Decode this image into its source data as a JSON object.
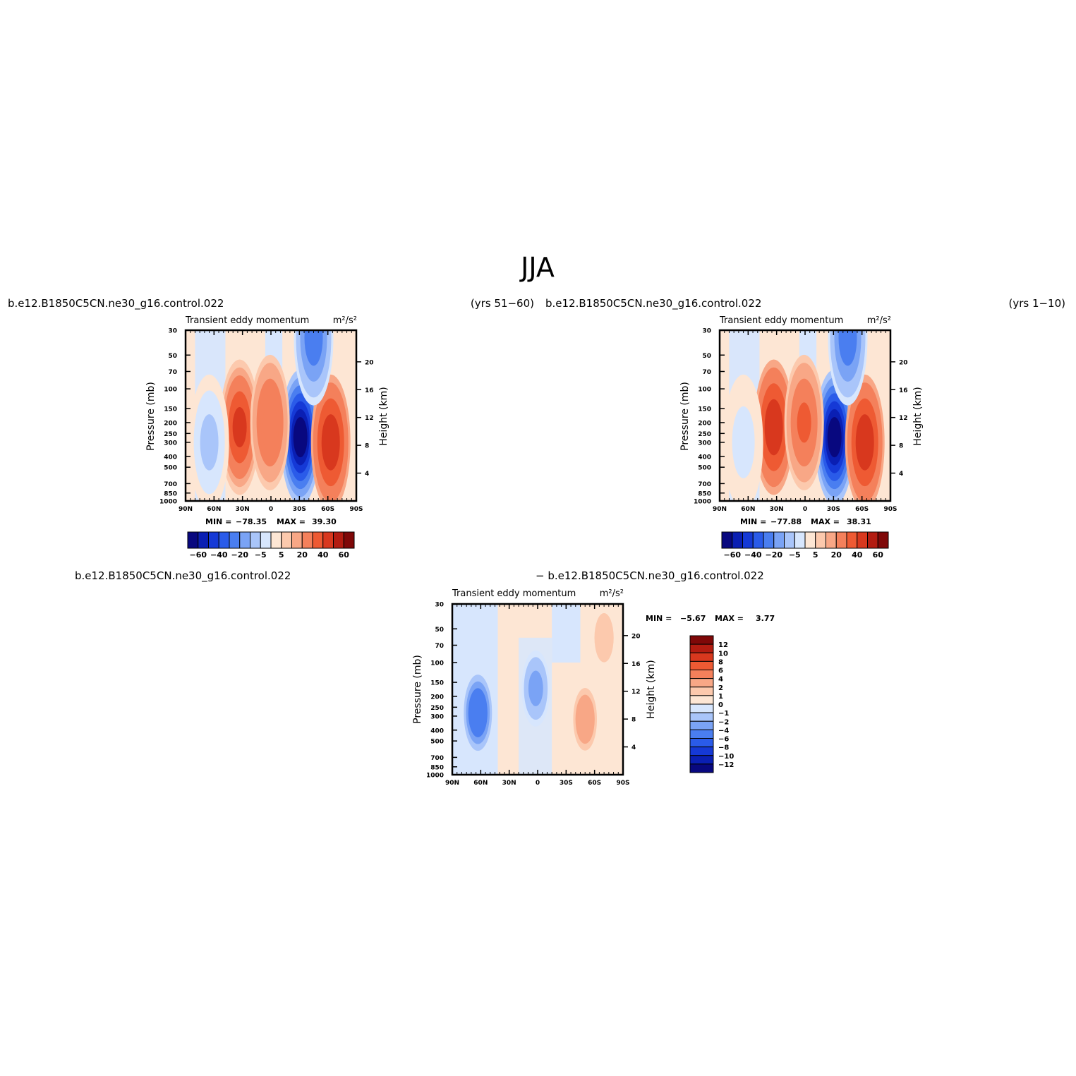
{
  "page_title": "JJA",
  "colors": {
    "scale_abs": [
      "#08087f",
      "#0a1fb3",
      "#1539d6",
      "#2a5be9",
      "#4a7ef0",
      "#7aa3f5",
      "#a9c5fa",
      "#d7e6fd",
      "#fde6d4",
      "#fcc9ad",
      "#f8a786",
      "#f4805b",
      "#ee5a33",
      "#d8381e",
      "#b31c11",
      "#7f0808"
    ],
    "scale_diff": [
      "#08087f",
      "#0a1fb3",
      "#1539d6",
      "#2a5be9",
      "#4a7ef0",
      "#7aa3f5",
      "#a9c5fa",
      "#d7e6fd",
      "#fde6d4",
      "#fcc9ad",
      "#f8a786",
      "#f4805b",
      "#ee5a33",
      "#d8381e",
      "#b31c11",
      "#7f0808"
    ]
  },
  "chart_data": [
    {
      "type": "heatmap",
      "case": "b.e12.B1850C5CN.ne30_g16.control.022",
      "years": "(yrs 51−60)",
      "title": "Transient eddy momentum",
      "units": "m²/s²",
      "xlabel": "",
      "ylabel": "Pressure (mb)",
      "y2label": "Height (km)",
      "x_ticks": [
        "90N",
        "60N",
        "30N",
        "0",
        "30S",
        "60S",
        "90S"
      ],
      "x_values": [
        90,
        60,
        30,
        0,
        -30,
        -60,
        -90
      ],
      "y_ticks": [
        30,
        50,
        70,
        100,
        150,
        200,
        250,
        300,
        400,
        500,
        700,
        850,
        1000
      ],
      "y2_ticks": [
        4,
        8,
        12,
        16,
        20
      ],
      "ylim": [
        1000,
        30
      ],
      "ylog": true,
      "min_label": "MIN =",
      "min": "−78.35",
      "max_label": "MAX =",
      "max": "39.30",
      "colorbar_labels": [
        "−60",
        "−40",
        "−20",
        "−5",
        "5",
        "20",
        "40",
        "60"
      ],
      "features": [
        {
          "lat": -31,
          "p": 270,
          "value": -78.35
        },
        {
          "lat": 33,
          "p": 220,
          "value": 35
        },
        {
          "lat": 1,
          "p": 200,
          "value": 18
        },
        {
          "lat": -63,
          "p": 300,
          "value": 39.3
        },
        {
          "lat": 65,
          "p": 300,
          "value": -12
        },
        {
          "lat": -45,
          "p": 35,
          "value": -38
        }
      ]
    },
    {
      "type": "heatmap",
      "case": "b.e12.B1850C5CN.ne30_g16.control.022",
      "years": "(yrs 1−10)",
      "title": "Transient eddy momentum",
      "units": "m²/s²",
      "xlabel": "",
      "ylabel": "Pressure (mb)",
      "y2label": "Height (km)",
      "x_ticks": [
        "90N",
        "60N",
        "30N",
        "0",
        "30S",
        "60S",
        "90S"
      ],
      "x_values": [
        90,
        60,
        30,
        0,
        -30,
        -60,
        -90
      ],
      "y_ticks": [
        30,
        50,
        70,
        100,
        150,
        200,
        250,
        300,
        400,
        500,
        700,
        850,
        1000
      ],
      "y2_ticks": [
        4,
        8,
        12,
        16,
        20
      ],
      "ylim": [
        1000,
        30
      ],
      "ylog": true,
      "min_label": "MIN =",
      "min": "−77.88",
      "max_label": "MAX =",
      "max": "38.31",
      "colorbar_labels": [
        "−60",
        "−40",
        "−20",
        "−5",
        "5",
        "20",
        "40",
        "60"
      ],
      "features": [
        {
          "lat": -31,
          "p": 270,
          "value": -77.88
        },
        {
          "lat": 33,
          "p": 220,
          "value": 36
        },
        {
          "lat": 1,
          "p": 200,
          "value": 22
        },
        {
          "lat": -63,
          "p": 300,
          "value": 38.31
        },
        {
          "lat": 65,
          "p": 300,
          "value": -8
        },
        {
          "lat": -45,
          "p": 35,
          "value": -36
        }
      ]
    },
    {
      "type": "heatmap",
      "case_a": "b.e12.B1850C5CN.ne30_g16.control.022",
      "case_b": "− b.e12.B1850C5CN.ne30_g16.control.022",
      "title": "Transient eddy momentum",
      "units": "m²/s²",
      "xlabel": "",
      "ylabel": "Pressure (mb)",
      "y2label": "Height (km)",
      "x_ticks": [
        "90N",
        "60N",
        "30N",
        "0",
        "30S",
        "60S",
        "90S"
      ],
      "x_values": [
        90,
        60,
        30,
        0,
        -30,
        -60,
        -90
      ],
      "y_ticks": [
        30,
        50,
        70,
        100,
        150,
        200,
        250,
        300,
        400,
        500,
        700,
        850,
        1000
      ],
      "y2_ticks": [
        4,
        8,
        12,
        16,
        20
      ],
      "ylim": [
        1000,
        30
      ],
      "ylog": true,
      "min_label": "MIN =",
      "min": "−5.67",
      "max_label": "MAX =",
      "max": "3.77",
      "colorbar_labels": [
        "12",
        "10",
        "8",
        "6",
        "4",
        "2",
        "1",
        "0",
        "−1",
        "−2",
        "−4",
        "−6",
        "−8",
        "−10",
        "−12"
      ],
      "features": [
        {
          "lat": 63,
          "p": 280,
          "value": -5.67
        },
        {
          "lat": 2,
          "p": 170,
          "value": -2.5
        },
        {
          "lat": -50,
          "p": 320,
          "value": 3.77
        },
        {
          "lat": -70,
          "p": 60,
          "value": 2
        }
      ]
    }
  ]
}
